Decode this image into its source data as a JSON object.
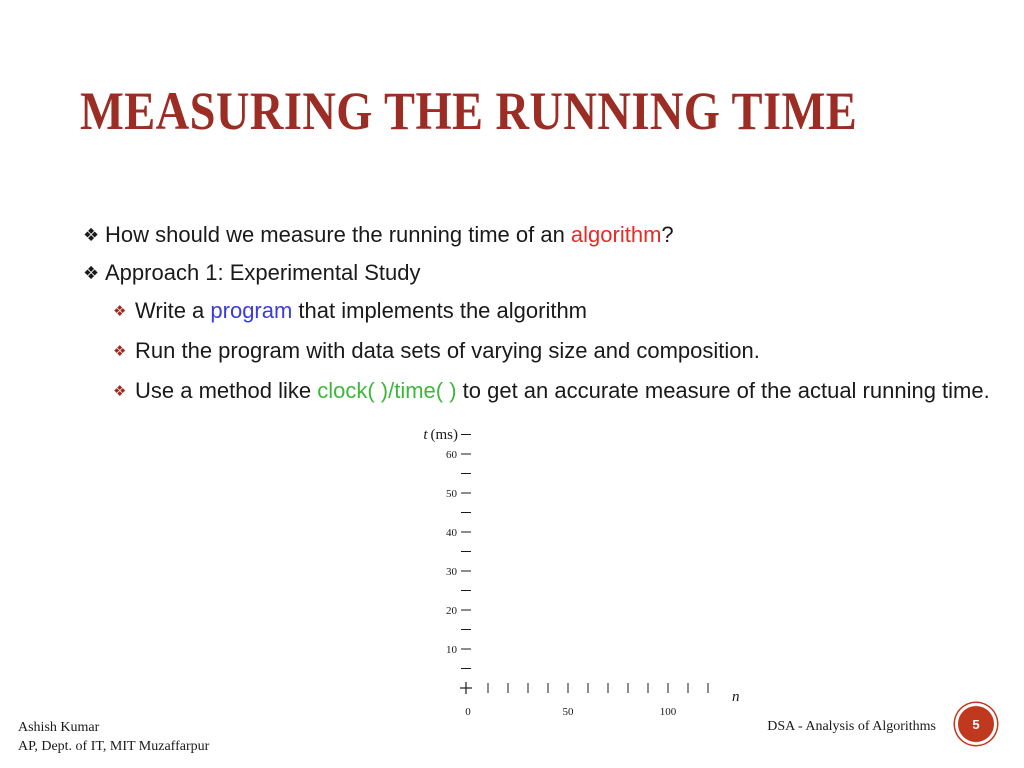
{
  "slide": {
    "title": "MEASURING THE RUNNING TIME",
    "bullets": [
      {
        "parts": [
          {
            "text": "How should we measure the running time of an ",
            "style": ""
          },
          {
            "text": "algorithm",
            "style": "red"
          },
          {
            "text": "?",
            "style": ""
          }
        ]
      },
      {
        "parts": [
          {
            "text": "Approach 1: Experimental Study",
            "style": ""
          }
        ]
      }
    ],
    "sub_bullets": [
      {
        "parts": [
          {
            "text": "Write a ",
            "style": ""
          },
          {
            "text": "program",
            "style": "blue"
          },
          {
            "text": " that implements the algorithm",
            "style": ""
          }
        ]
      },
      {
        "parts": [
          {
            "text": "Run the program with data sets of varying size and composition.",
            "style": ""
          }
        ]
      },
      {
        "parts": [
          {
            "text": "Use a method like ",
            "style": ""
          },
          {
            "text": "clock( )/time( )",
            "style": "green"
          },
          {
            "text": " to get an accurate measure of the actual running time.",
            "style": ""
          }
        ]
      }
    ],
    "bullet_icon": "diamond-bullet-icon"
  },
  "chart_data": {
    "type": "scatter",
    "ylabel_var": "t",
    "ylabel_unit": "(ms)",
    "xlabel": "n",
    "y_ticks": [
      10,
      20,
      30,
      40,
      50,
      60
    ],
    "x_tick_labels": [
      0,
      50,
      100
    ],
    "ylim": [
      0,
      60
    ],
    "xlim": [
      0,
      125
    ],
    "points": []
  },
  "footer": {
    "author": "Ashish Kumar",
    "affiliation": "AP, Dept. of IT, MIT Muzaffarpur",
    "course": "DSA - Analysis of Algorithms",
    "page_number": "5"
  },
  "colors": {
    "title": "#9b2d24",
    "highlight_red": "#e52b23",
    "highlight_blue": "#3b3be0",
    "highlight_green": "#3cb83c",
    "badge": "#c0391f"
  }
}
